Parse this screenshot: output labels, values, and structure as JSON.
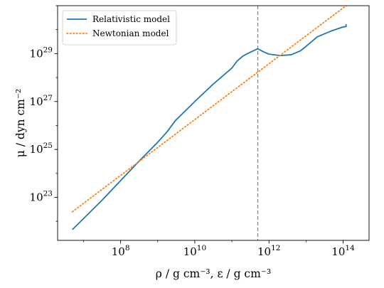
{
  "chart_data": {
    "type": "line",
    "xscale": "log",
    "yscale": "log",
    "xlim": [
      2000000,
      500000000000000
    ],
    "ylim": [
      1.6e+21,
      1e+31
    ],
    "xticks": [
      {
        "base": "10",
        "exp": "8",
        "value": 100000000.0
      },
      {
        "base": "10",
        "exp": "10",
        "value": 10000000000.0
      },
      {
        "base": "10",
        "exp": "12",
        "value": 1000000000000.0
      },
      {
        "base": "10",
        "exp": "14",
        "value": 100000000000000.0
      }
    ],
    "yticks": [
      {
        "base": "10",
        "exp": "23",
        "value": 1e+23
      },
      {
        "base": "10",
        "exp": "25",
        "value": 1e+25
      },
      {
        "base": "10",
        "exp": "27",
        "value": 1e+27
      },
      {
        "base": "10",
        "exp": "29",
        "value": 1e+29
      }
    ],
    "xlabel": "ρ / g cm⁻³, ε / g cm⁻³",
    "ylabel": "μ / dyn cm⁻²",
    "vline": {
      "x": 500000000000.0,
      "color": "#808080",
      "style": "dashed"
    },
    "legend": {
      "position": "top-left"
    },
    "series": [
      {
        "name": "Relativistic model",
        "color": "#1f77b4",
        "style": "solid",
        "x": [
          5000000.0,
          10000000.0,
          30000000.0,
          100000000.0,
          300000000.0,
          1000000000.0,
          1800000000.0,
          3000000000.0,
          10000000000.0,
          30000000000.0,
          100000000000.0,
          140000000000.0,
          200000000000.0,
          300000000000.0,
          500000000000.0,
          700000000000.0,
          1000000000000.0,
          2000000000000.0,
          4000000000000.0,
          7000000000000.0,
          10000000000000.0,
          20000000000000.0,
          50000000000000.0,
          100000000000000.0,
          120000000000000.0,
          120000000000000.0
        ],
        "y": [
          4.5e+21,
          1.3e+22,
          7e+22,
          5e+23,
          3e+24,
          2e+25,
          5.5e+25,
          1.6e+26,
          1e+27,
          5e+27,
          2.5e+28,
          5e+28,
          8e+28,
          1.1e+29,
          1.6e+29,
          1.2e+29,
          9.5e+28,
          8.3e+28,
          9e+28,
          1.3e+29,
          2e+29,
          5e+29,
          9e+29,
          1.3e+30,
          1.35e+30,
          1.7e+30
        ]
      },
      {
        "name": "Newtonian model",
        "color": "#ff7f0e",
        "style": "dotted",
        "x": [
          5000000.0,
          120000000000000.0
        ],
        "y": [
          2.5e+22,
          1e+31
        ]
      }
    ]
  }
}
